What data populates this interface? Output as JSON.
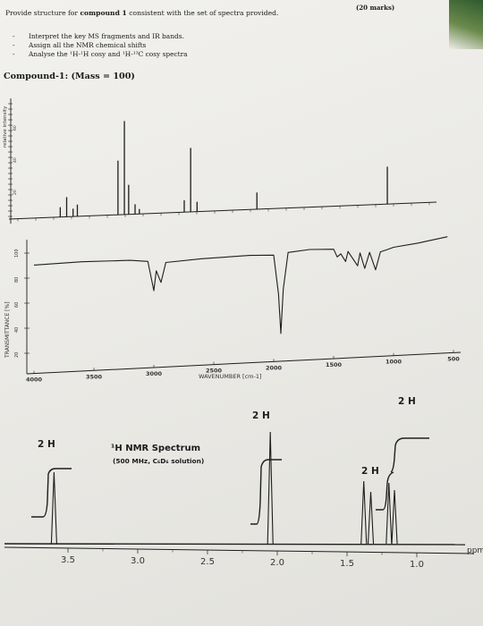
{
  "header": {
    "instruction_pre": "Provide structure for ",
    "instruction_bold": "compound 1",
    "instruction_post": " consistent with the set of spectra provided.",
    "marks": "(20 marks)"
  },
  "tasks": [
    "Interpret the key MS fragments and IR bands.",
    "Assign all the NMR chemical shifts",
    "Analyse the ¹H-¹H cosy and ¹H-¹³C cosy spectra"
  ],
  "task_bullet": "-",
  "compound_label": "Compound-1:  (Mass = 100)",
  "ms": {
    "yaxis_label": "relative intensity",
    "ticks": [
      "60",
      "40",
      "20"
    ],
    "peaks": [
      {
        "x": 0.12,
        "h": 0.1
      },
      {
        "x": 0.135,
        "h": 0.2
      },
      {
        "x": 0.15,
        "h": 0.08
      },
      {
        "x": 0.16,
        "h": 0.12
      },
      {
        "x": 0.255,
        "h": 0.55
      },
      {
        "x": 0.27,
        "h": 0.95
      },
      {
        "x": 0.28,
        "h": 0.3
      },
      {
        "x": 0.295,
        "h": 0.1
      },
      {
        "x": 0.305,
        "h": 0.05
      },
      {
        "x": 0.41,
        "h": 0.12
      },
      {
        "x": 0.425,
        "h": 0.65
      },
      {
        "x": 0.44,
        "h": 0.1
      },
      {
        "x": 0.58,
        "h": 0.17
      },
      {
        "x": 0.885,
        "h": 0.38
      }
    ]
  },
  "ir": {
    "ylabel": "TRANSMITTANCE [%]",
    "yticks": [
      "100",
      "80",
      "60",
      "40",
      "20"
    ],
    "xlabel": "WAVENUMBER [cm-1]",
    "xticks": [
      "4000",
      "3500",
      "3000",
      "2500",
      "2000",
      "1500",
      "1000",
      "500"
    ],
    "trace": [
      [
        4000,
        92
      ],
      [
        3600,
        93
      ],
      [
        3200,
        92
      ],
      [
        3050,
        90
      ],
      [
        3000,
        60
      ],
      [
        2980,
        80
      ],
      [
        2940,
        68
      ],
      [
        2900,
        88
      ],
      [
        2600,
        90
      ],
      [
        2200,
        91
      ],
      [
        2000,
        90
      ],
      [
        1960,
        50
      ],
      [
        1940,
        10
      ],
      [
        1920,
        55
      ],
      [
        1880,
        92
      ],
      [
        1700,
        94
      ],
      [
        1500,
        93
      ],
      [
        1470,
        85
      ],
      [
        1440,
        88
      ],
      [
        1400,
        80
      ],
      [
        1380,
        90
      ],
      [
        1300,
        75
      ],
      [
        1280,
        88
      ],
      [
        1240,
        72
      ],
      [
        1200,
        88
      ],
      [
        1150,
        70
      ],
      [
        1110,
        88
      ],
      [
        1050,
        90
      ],
      [
        1000,
        92
      ],
      [
        800,
        95
      ],
      [
        550,
        100
      ]
    ]
  },
  "nmr": {
    "title": "¹H NMR Spectrum",
    "subtitle": "(500 MHz, C₆D₆ solution)",
    "axis_unit": "ppm",
    "xticks": [
      "3.5",
      "3.0",
      "2.5",
      "2.0",
      "1.5",
      "1.0"
    ],
    "integrals": [
      {
        "label": "2 H",
        "ppm": 3.6
      },
      {
        "label": "2 H",
        "ppm": 2.05
      },
      {
        "label": "2 H",
        "ppm": 1.35
      },
      {
        "label": "2 H",
        "ppm": 1.18
      }
    ]
  }
}
